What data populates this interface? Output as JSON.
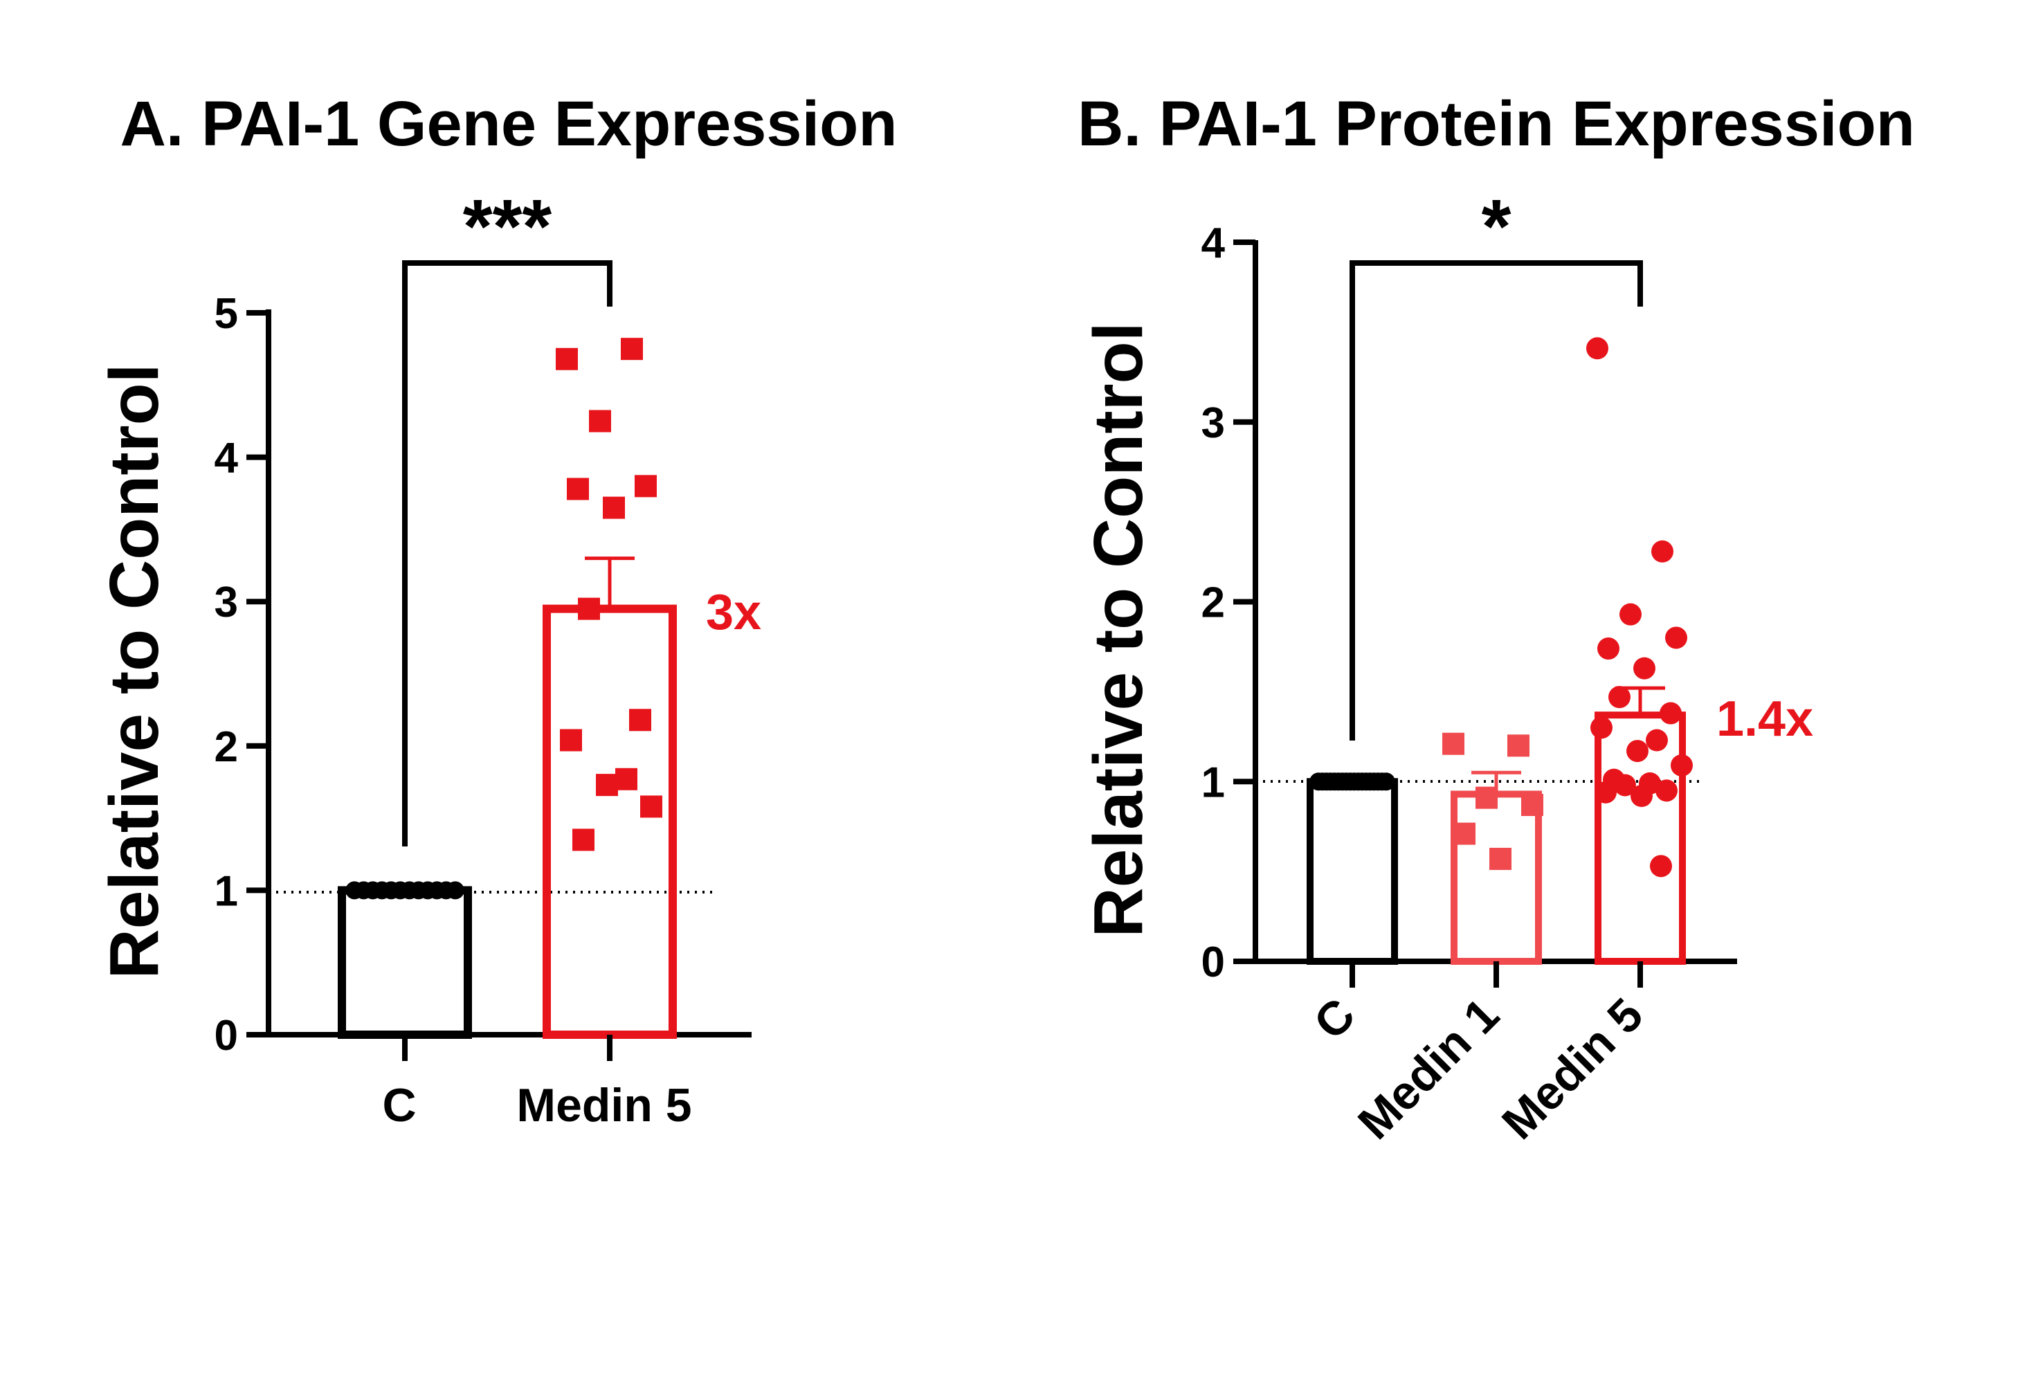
{
  "chart_data": [
    {
      "type": "bar",
      "title": "A. PAI-1 Gene Expression",
      "ylabel": "Relative to Control",
      "xlabel": "",
      "ylim": [
        0,
        5
      ],
      "yticks": [
        0,
        1,
        2,
        3,
        4,
        5
      ],
      "reference_line": 1,
      "categories": [
        "C",
        "Medin 5"
      ],
      "colors": [
        "#000000",
        "#e8141b"
      ],
      "means": [
        1.0,
        2.95
      ],
      "sem": [
        0,
        0.35
      ],
      "points": [
        [
          1,
          1,
          1,
          1,
          1,
          1,
          1,
          1,
          1,
          1,
          1,
          1
        ],
        [
          4.68,
          4.75,
          4.25,
          3.8,
          3.78,
          3.65,
          2.95,
          2.18,
          2.04,
          1.77,
          1.73,
          1.58,
          1.35
        ]
      ],
      "marker": "square",
      "annotation": {
        "text": "3x",
        "color": "#e8141b"
      },
      "significance": {
        "from": 0,
        "to": 1,
        "label": "***"
      }
    },
    {
      "type": "bar",
      "title": "B. PAI-1 Protein Expression",
      "ylabel": "Relative to Control",
      "xlabel": "",
      "ylim": [
        0,
        4
      ],
      "yticks": [
        0,
        1,
        2,
        3,
        4
      ],
      "reference_line": 1,
      "categories": [
        "C",
        "Medin 1",
        "Medin 5"
      ],
      "colors": [
        "#000000",
        "#f04a4e",
        "#e8141b"
      ],
      "means": [
        1.0,
        0.93,
        1.37
      ],
      "sem": [
        0,
        0.12,
        0.15
      ],
      "points": [
        [
          1,
          1,
          1,
          1,
          1,
          1,
          1,
          1,
          1,
          1,
          1,
          1,
          1,
          1,
          1,
          1,
          1,
          1
        ],
        [
          1.21,
          1.2,
          0.91,
          0.87,
          0.71,
          0.57
        ],
        [
          3.41,
          2.28,
          1.93,
          1.8,
          1.74,
          1.63,
          1.47,
          1.38,
          1.3,
          1.23,
          1.17,
          1.09,
          1.01,
          0.99,
          0.98,
          0.95,
          0.94,
          0.92,
          0.53
        ]
      ],
      "markers": [
        "circle",
        "square",
        "circle"
      ],
      "annotation": {
        "text": "1.4x",
        "color": "#e8141b"
      },
      "significance": {
        "from": 0,
        "to": 2,
        "label": "*"
      }
    }
  ]
}
